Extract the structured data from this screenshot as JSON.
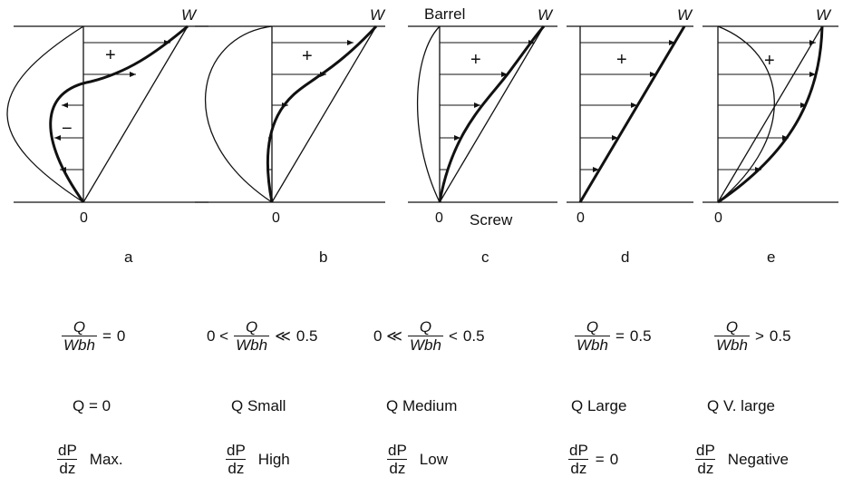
{
  "labels": {
    "barrel": "Barrel",
    "screw": "Screw",
    "w": "W",
    "zero": "0",
    "plus": "+",
    "minus": "−"
  },
  "panels": [
    {
      "letter": "a",
      "ratio_lhs": "",
      "ratio_op": "=",
      "ratio_rhs": "0",
      "q_text": "Q = 0",
      "dp_op": "",
      "dp_text": "Max."
    },
    {
      "letter": "b",
      "ratio_lhs": "0 <",
      "ratio_op": "≪",
      "ratio_rhs": "0.5",
      "q_text": "Q  Small",
      "dp_op": "",
      "dp_text": "High"
    },
    {
      "letter": "c",
      "ratio_lhs": "0 ≪",
      "ratio_op": "<",
      "ratio_rhs": "0.5",
      "q_text": "Q  Medium",
      "dp_op": "",
      "dp_text": "Low"
    },
    {
      "letter": "d",
      "ratio_lhs": "",
      "ratio_op": "=",
      "ratio_rhs": "0.5",
      "q_text": "Q  Large",
      "dp_op": "=",
      "dp_text": "0"
    },
    {
      "letter": "e",
      "ratio_lhs": "",
      "ratio_op": ">",
      "ratio_rhs": "0.5",
      "q_text": "Q  V. large",
      "dp_op": "",
      "dp_text": "Negative"
    }
  ],
  "fraction": {
    "num": "Q",
    "den": "Wbh"
  },
  "dpdz": {
    "num": "dP",
    "den": "dz"
  }
}
